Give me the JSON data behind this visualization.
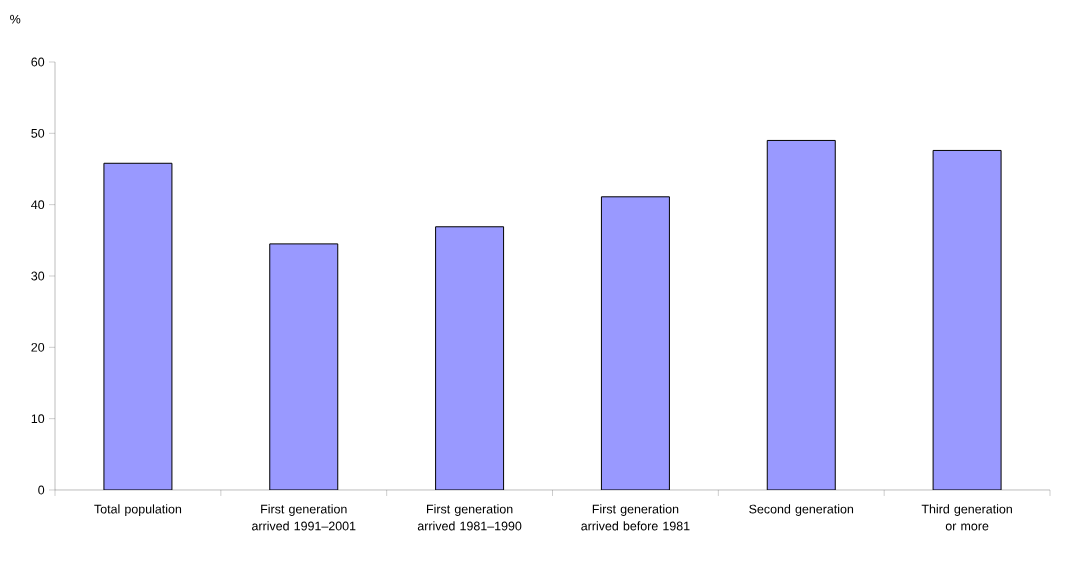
{
  "chart_data": {
    "type": "bar",
    "ylabel": "%",
    "categories": [
      "Total population",
      "First generation arrived 1991–2001",
      "First generation arrived 1981–1990",
      "First generation arrived before 1981",
      "Second generation",
      "Third generation or more"
    ],
    "values": [
      45.8,
      34.5,
      36.9,
      41.1,
      49.0,
      47.6
    ],
    "color": "#9999ff",
    "ylim": [
      0,
      60
    ],
    "yticks": [
      0,
      10,
      20,
      30,
      40,
      50,
      60
    ],
    "grid": false
  }
}
